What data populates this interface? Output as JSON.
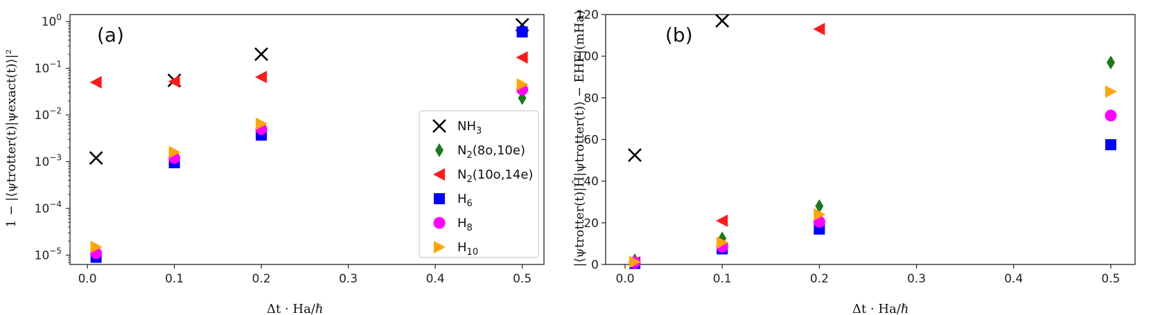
{
  "chart_data": [
    {
      "type": "scatter",
      "panel_label": "(a)",
      "xlabel": "Δt · Ha/ℏ",
      "ylabel": "1 − |⟨ψtrotter(t)|ψexact(t)⟩|²",
      "xlim": [
        -0.02,
        0.525
      ],
      "ylim_log10": [
        -5.2,
        0.15
      ],
      "yscale": "log",
      "xticks": [
        "0.0",
        "0.1",
        "0.2",
        "0.3",
        "0.4",
        "0.5"
      ],
      "xtick_values": [
        0.0,
        0.1,
        0.2,
        0.3,
        0.4,
        0.5
      ],
      "yticks": [
        {
          "base": "10",
          "exp": "−5",
          "v": -5
        },
        {
          "base": "10",
          "exp": "−4",
          "v": -4
        },
        {
          "base": "10",
          "exp": "−3",
          "v": -3
        },
        {
          "base": "10",
          "exp": "−2",
          "v": -2
        },
        {
          "base": "10",
          "exp": "−1",
          "v": -1
        },
        {
          "base": "10",
          "exp": "0",
          "v": 0
        }
      ],
      "legend": {
        "placement": "lower-right"
      },
      "series": [
        {
          "name": "NH",
          "sub": "3",
          "marker": "x",
          "color": "#000000",
          "points": [
            [
              0.01,
              0.0012
            ],
            [
              0.1,
              0.055
            ],
            [
              0.2,
              0.2
            ],
            [
              0.5,
              0.85
            ]
          ]
        },
        {
          "name": "N",
          "sub": "2",
          "suffix": "(8o,10e)",
          "marker": "thin-diamond",
          "color": "#1a7a1a",
          "points": [
            [
              0.5,
              0.023
            ]
          ]
        },
        {
          "name": "N",
          "sub": "2",
          "suffix": "(10o,14e)",
          "marker": "triangle-left",
          "color": "#ff1a1a",
          "points": [
            [
              0.01,
              0.05
            ],
            [
              0.1,
              0.052
            ],
            [
              0.2,
              0.065
            ],
            [
              0.5,
              0.17
            ]
          ]
        },
        {
          "name": "H",
          "sub": "6",
          "marker": "square",
          "color": "#0000ff",
          "points": [
            [
              0.01,
              9e-06
            ],
            [
              0.1,
              0.00095
            ],
            [
              0.2,
              0.0037
            ],
            [
              0.5,
              0.6
            ]
          ]
        },
        {
          "name": "H",
          "sub": "8",
          "marker": "circle",
          "color": "#ff00ff",
          "points": [
            [
              0.01,
              1.1e-05
            ],
            [
              0.1,
              0.0012
            ],
            [
              0.2,
              0.005
            ],
            [
              0.5,
              0.035
            ]
          ]
        },
        {
          "name": "H",
          "sub": "10",
          "marker": "triangle-right",
          "color": "#ffa500",
          "points": [
            [
              0.01,
              1.5e-05
            ],
            [
              0.1,
              0.0016
            ],
            [
              0.2,
              0.0065
            ],
            [
              0.5,
              0.045
            ]
          ]
        }
      ]
    },
    {
      "type": "scatter",
      "panel_label": "(b)",
      "xlabel": "Δt · Ha/ℏ",
      "ylabel": "|⟨ψtrotter(t)|Ĥ|ψtrotter(t)⟩ − EHF|(mHa)",
      "xlim": [
        -0.02,
        0.525
      ],
      "ylim": [
        0,
        120
      ],
      "yscale": "linear",
      "xticks": [
        "0.0",
        "0.1",
        "0.2",
        "0.3",
        "0.4",
        "0.5"
      ],
      "xtick_values": [
        0.0,
        0.1,
        0.2,
        0.3,
        0.4,
        0.5
      ],
      "yticks": [
        "0",
        "20",
        "40",
        "60",
        "80",
        "100",
        "120"
      ],
      "ytick_values": [
        0,
        20,
        40,
        60,
        80,
        100,
        120
      ],
      "series": [
        {
          "name": "NH3",
          "marker": "x",
          "color": "#000000",
          "points": [
            [
              0.01,
              52.5
            ],
            [
              0.1,
              117
            ],
            [
              0.2,
              0.0
            ],
            [
              0.5,
              0.0
            ]
          ],
          "visible": [
            true,
            true,
            false,
            false
          ]
        },
        {
          "name": "N2(8o,10e)",
          "marker": "thin-diamond",
          "color": "#1a7a1a",
          "points": [
            [
              0.01,
              2
            ],
            [
              0.1,
              12.5
            ],
            [
              0.2,
              28
            ],
            [
              0.5,
              97
            ]
          ]
        },
        {
          "name": "N2(10o,14e)",
          "marker": "triangle-left",
          "color": "#ff1a1a",
          "points": [
            [
              0.01,
              1
            ],
            [
              0.1,
              21
            ],
            [
              0.2,
              113
            ]
          ]
        },
        {
          "name": "H6",
          "marker": "square",
          "color": "#0000ff",
          "points": [
            [
              0.01,
              0.5
            ],
            [
              0.1,
              7.5
            ],
            [
              0.2,
              17
            ],
            [
              0.5,
              57.5
            ]
          ]
        },
        {
          "name": "H8",
          "marker": "circle",
          "color": "#ff00ff",
          "points": [
            [
              0.01,
              1
            ],
            [
              0.1,
              8.5
            ],
            [
              0.2,
              20.5
            ],
            [
              0.5,
              71.5
            ]
          ]
        },
        {
          "name": "H10",
          "marker": "triangle-right",
          "color": "#ffa500",
          "points": [
            [
              0.01,
              1.2
            ],
            [
              0.1,
              10.5
            ],
            [
              0.2,
              24
            ],
            [
              0.5,
              83
            ]
          ]
        }
      ]
    }
  ]
}
